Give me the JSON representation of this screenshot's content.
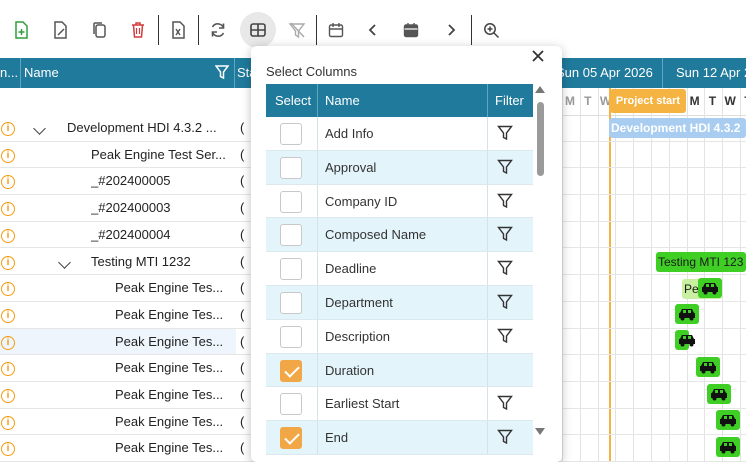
{
  "toolbar": {
    "buttons": [
      "add-icon",
      "edit-icon",
      "copy-icon",
      "delete-icon",
      "excel-icon",
      "refresh-icon",
      "columns-icon",
      "clear-filter-icon",
      "calendar-icon",
      "prev-icon",
      "today-icon",
      "next-icon",
      "zoom-in-icon"
    ]
  },
  "grid": {
    "headers": {
      "first": "n...",
      "name": "Name",
      "status": "Sta"
    },
    "rows": [
      {
        "name": "Development HDI 4.3.2 ...",
        "level": 1,
        "expandable": true,
        "status": "("
      },
      {
        "name": "Peak Engine Test Ser...",
        "level": 2,
        "expandable": false,
        "status": "("
      },
      {
        "name": "_#202400005",
        "level": 2,
        "expandable": false,
        "status": "("
      },
      {
        "name": "_#202400003",
        "level": 2,
        "expandable": false,
        "status": "("
      },
      {
        "name": "_#202400004",
        "level": 2,
        "expandable": false,
        "status": "("
      },
      {
        "name": "Testing MTI 1232",
        "level": 2,
        "expandable": true,
        "status": "("
      },
      {
        "name": "Peak Engine Tes...",
        "level": 3,
        "expandable": false,
        "status": "("
      },
      {
        "name": "Peak Engine Tes...",
        "level": 3,
        "expandable": false,
        "status": "("
      },
      {
        "name": "Peak Engine Tes...",
        "level": 3,
        "expandable": false,
        "status": "("
      },
      {
        "name": "Peak Engine Tes...",
        "level": 3,
        "expandable": false,
        "status": "("
      },
      {
        "name": "Peak Engine Tes...",
        "level": 3,
        "expandable": false,
        "status": "("
      },
      {
        "name": "Peak Engine Tes...",
        "level": 3,
        "expandable": false,
        "status": "("
      },
      {
        "name": "Peak Engine Tes...",
        "level": 3,
        "expandable": false,
        "status": "("
      }
    ]
  },
  "gantt": {
    "weeks": [
      "Sun 05 Apr 2026",
      "Sun 12 Apr 2"
    ],
    "days": [
      "M",
      "T",
      "W",
      "T",
      "F",
      "S",
      "S",
      "M",
      "T",
      "W",
      "T"
    ],
    "project_start_label": "Project start",
    "bars": [
      {
        "label": "Development HDI 4.3.2",
        "color": "#a8cdf0",
        "text_color": "#ffffff"
      },
      {
        "label": "Testing MTI 123",
        "color": "#3fcf24",
        "text_color": "#1a1a1a"
      },
      {
        "label": "Pea",
        "color": "#c8f0a0",
        "text_color": "#1a1a1a"
      }
    ]
  },
  "popup": {
    "title": "Select Columns",
    "close_label": "×",
    "headers": {
      "select": "Select",
      "name": "Name",
      "filter": "Filter"
    },
    "columns": [
      {
        "name": "Add Info",
        "checked": false,
        "filter": true
      },
      {
        "name": "Approval",
        "checked": false,
        "filter": true
      },
      {
        "name": "Company ID",
        "checked": false,
        "filter": true
      },
      {
        "name": "Composed Name",
        "checked": false,
        "filter": true
      },
      {
        "name": "Deadline",
        "checked": false,
        "filter": true
      },
      {
        "name": "Department",
        "checked": false,
        "filter": true
      },
      {
        "name": "Description",
        "checked": false,
        "filter": true
      },
      {
        "name": "Duration",
        "checked": true,
        "filter": false
      },
      {
        "name": "Earliest Start",
        "checked": false,
        "filter": true
      },
      {
        "name": "End",
        "checked": true,
        "filter": true
      }
    ]
  },
  "colors": {
    "header_bg": "#1f7a9c",
    "accent_orange": "#f2a747",
    "row_alt": "#e4f4fb",
    "project_start": "#f5b342"
  }
}
